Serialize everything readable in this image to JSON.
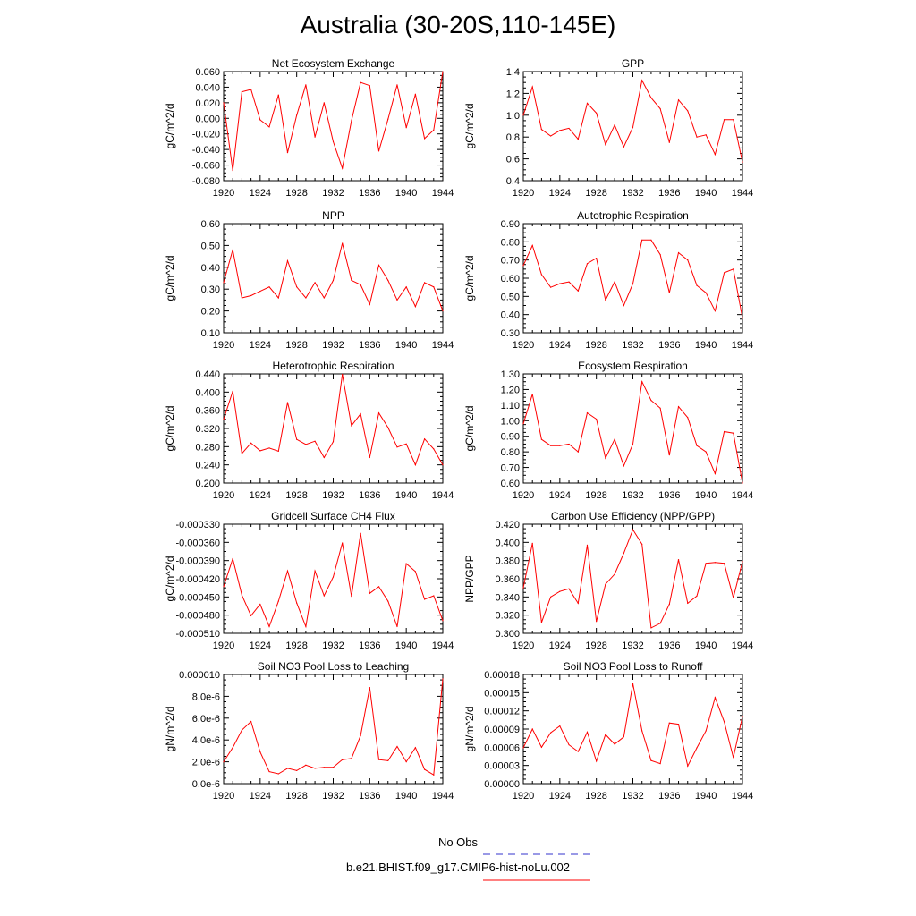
{
  "title": "Australia (30-20S,110-145E)",
  "colors": {
    "model": "#ff0000",
    "obs": "#3333cc"
  },
  "legend": {
    "obs_label": "No Obs",
    "model_label": "b.e21.BHIST.f09_g17.CMIP6-hist-noLu.002"
  },
  "chart_data": [
    {
      "type": "line",
      "title": "Net Ecosystem Exchange",
      "ylabel": "gC/m^2/d",
      "xlim": [
        1920,
        1944
      ],
      "ylim": [
        -0.08,
        0.06
      ],
      "grid": false,
      "xticks": [
        "1920",
        "1924",
        "1928",
        "1932",
        "1936",
        "1940",
        "1944"
      ],
      "yticks": [
        "-0.080",
        "-0.060",
        "-0.040",
        "-0.020",
        "0.000",
        "0.020",
        "0.040",
        "0.060"
      ],
      "ytick_values": [
        -0.08,
        -0.06,
        -0.04,
        -0.02,
        0,
        0.02,
        0.04,
        0.06
      ],
      "series": [
        {
          "x": [
            1920,
            1921,
            1922,
            1923,
            1924,
            1925,
            1926,
            1927,
            1928,
            1929,
            1930,
            1931,
            1932,
            1933,
            1934,
            1935,
            1936,
            1937,
            1938,
            1939,
            1940,
            1941,
            1942,
            1943,
            1944
          ],
          "values": [
            0.02,
            -0.067,
            0.034,
            0.037,
            -0.002,
            -0.011,
            0.03,
            -0.044,
            0.004,
            0.043,
            -0.024,
            0.02,
            -0.03,
            -0.064,
            -0.003,
            0.046,
            0.042,
            -0.042,
            -0.001,
            0.043,
            -0.012,
            0.031,
            -0.026,
            -0.015,
            0.06
          ]
        }
      ]
    },
    {
      "type": "line",
      "title": "GPP",
      "ylabel": "gC/m^2/d",
      "xlim": [
        1920,
        1944
      ],
      "ylim": [
        0.4,
        1.4
      ],
      "grid": false,
      "xticks": [
        "1920",
        "1924",
        "1928",
        "1932",
        "1936",
        "1940",
        "1944"
      ],
      "yticks": [
        "0.4",
        "0.6",
        "0.8",
        "1.0",
        "1.2",
        "1.4"
      ],
      "ytick_values": [
        0.4,
        0.6,
        0.8,
        1.0,
        1.2,
        1.4
      ],
      "series": [
        {
          "x": [
            1920,
            1921,
            1922,
            1923,
            1924,
            1925,
            1926,
            1927,
            1928,
            1929,
            1930,
            1931,
            1932,
            1933,
            1934,
            1935,
            1936,
            1937,
            1938,
            1939,
            1940,
            1941,
            1942,
            1943,
            1944
          ],
          "values": [
            1.0,
            1.26,
            0.87,
            0.81,
            0.86,
            0.88,
            0.78,
            1.11,
            1.02,
            0.73,
            0.91,
            0.71,
            0.89,
            1.32,
            1.16,
            1.06,
            0.75,
            1.14,
            1.04,
            0.8,
            0.82,
            0.64,
            0.96,
            0.96,
            0.57
          ]
        }
      ]
    },
    {
      "type": "line",
      "title": "NPP",
      "ylabel": "gC/m^2/d",
      "xlim": [
        1920,
        1944
      ],
      "ylim": [
        0.1,
        0.6
      ],
      "grid": false,
      "xticks": [
        "1920",
        "1924",
        "1928",
        "1932",
        "1936",
        "1940",
        "1944"
      ],
      "yticks": [
        "0.10",
        "0.20",
        "0.30",
        "0.40",
        "0.50",
        "0.60"
      ],
      "ytick_values": [
        0.1,
        0.2,
        0.3,
        0.4,
        0.5,
        0.6
      ],
      "series": [
        {
          "x": [
            1920,
            1921,
            1922,
            1923,
            1924,
            1925,
            1926,
            1927,
            1928,
            1929,
            1930,
            1931,
            1932,
            1933,
            1934,
            1935,
            1936,
            1937,
            1938,
            1939,
            1940,
            1941,
            1942,
            1943,
            1944
          ],
          "values": [
            0.33,
            0.48,
            0.26,
            0.27,
            0.29,
            0.31,
            0.26,
            0.43,
            0.31,
            0.26,
            0.33,
            0.26,
            0.34,
            0.51,
            0.34,
            0.32,
            0.23,
            0.41,
            0.34,
            0.25,
            0.31,
            0.22,
            0.33,
            0.31,
            0.2
          ]
        }
      ]
    },
    {
      "type": "line",
      "title": "Autotrophic Respiration",
      "ylabel": "gC/m^2/d",
      "xlim": [
        1920,
        1944
      ],
      "ylim": [
        0.3,
        0.9
      ],
      "grid": false,
      "xticks": [
        "1920",
        "1924",
        "1928",
        "1932",
        "1936",
        "1940",
        "1944"
      ],
      "yticks": [
        "0.30",
        "0.40",
        "0.50",
        "0.60",
        "0.70",
        "0.80",
        "0.90"
      ],
      "ytick_values": [
        0.3,
        0.4,
        0.5,
        0.6,
        0.7,
        0.8,
        0.9
      ],
      "series": [
        {
          "x": [
            1920,
            1921,
            1922,
            1923,
            1924,
            1925,
            1926,
            1927,
            1928,
            1929,
            1930,
            1931,
            1932,
            1933,
            1934,
            1935,
            1936,
            1937,
            1938,
            1939,
            1940,
            1941,
            1942,
            1943,
            1944
          ],
          "values": [
            0.67,
            0.78,
            0.62,
            0.55,
            0.57,
            0.58,
            0.53,
            0.68,
            0.71,
            0.48,
            0.58,
            0.45,
            0.57,
            0.81,
            0.81,
            0.73,
            0.52,
            0.74,
            0.7,
            0.56,
            0.52,
            0.42,
            0.63,
            0.65,
            0.38
          ]
        }
      ]
    },
    {
      "type": "line",
      "title": "Heterotrophic Respiration",
      "ylabel": "gC/m^2/d",
      "xlim": [
        1920,
        1944
      ],
      "ylim": [
        0.2,
        0.44
      ],
      "grid": false,
      "xticks": [
        "1920",
        "1924",
        "1928",
        "1932",
        "1936",
        "1940",
        "1944"
      ],
      "yticks": [
        "0.200",
        "0.240",
        "0.280",
        "0.320",
        "0.360",
        "0.400",
        "0.440"
      ],
      "ytick_values": [
        0.2,
        0.24,
        0.28,
        0.32,
        0.36,
        0.4,
        0.44
      ],
      "series": [
        {
          "x": [
            1920,
            1921,
            1922,
            1923,
            1924,
            1925,
            1926,
            1927,
            1928,
            1929,
            1930,
            1931,
            1932,
            1933,
            1934,
            1935,
            1936,
            1937,
            1938,
            1939,
            1940,
            1941,
            1942,
            1943,
            1944
          ],
          "values": [
            0.34,
            0.402,
            0.265,
            0.288,
            0.271,
            0.277,
            0.27,
            0.377,
            0.296,
            0.285,
            0.292,
            0.256,
            0.291,
            0.439,
            0.326,
            0.352,
            0.256,
            0.354,
            0.322,
            0.279,
            0.286,
            0.24,
            0.297,
            0.275,
            0.24
          ]
        }
      ]
    },
    {
      "type": "line",
      "title": "Ecosystem Respiration",
      "ylabel": "gC/m^2/d",
      "xlim": [
        1920,
        1944
      ],
      "ylim": [
        0.6,
        1.3
      ],
      "grid": false,
      "xticks": [
        "1920",
        "1924",
        "1928",
        "1932",
        "1936",
        "1940",
        "1944"
      ],
      "yticks": [
        "0.60",
        "0.70",
        "0.80",
        "0.90",
        "1.00",
        "1.10",
        "1.20",
        "1.30"
      ],
      "ytick_values": [
        0.6,
        0.7,
        0.8,
        0.9,
        1.0,
        1.1,
        1.2,
        1.3
      ],
      "series": [
        {
          "x": [
            1920,
            1921,
            1922,
            1923,
            1924,
            1925,
            1926,
            1927,
            1928,
            1929,
            1930,
            1931,
            1932,
            1933,
            1934,
            1935,
            1936,
            1937,
            1938,
            1939,
            1940,
            1941,
            1942,
            1943,
            1944
          ],
          "values": [
            0.98,
            1.17,
            0.88,
            0.84,
            0.84,
            0.85,
            0.8,
            1.05,
            1.01,
            0.76,
            0.88,
            0.71,
            0.85,
            1.25,
            1.13,
            1.08,
            0.78,
            1.09,
            1.02,
            0.84,
            0.8,
            0.66,
            0.93,
            0.92,
            0.6
          ]
        }
      ]
    },
    {
      "type": "line",
      "title": "Gridcell Surface CH4 Flux",
      "ylabel": "gC/m^2/d",
      "xlim": [
        1920,
        1944
      ],
      "ylim": [
        -0.00051,
        -0.00033
      ],
      "grid": false,
      "xticks": [
        "1920",
        "1924",
        "1928",
        "1932",
        "1936",
        "1940",
        "1944"
      ],
      "yticks": [
        "-0.000510",
        "-0.000480",
        "-0.000450",
        "-0.000420",
        "-0.000390",
        "-0.000360",
        "-0.000330"
      ],
      "ytick_values": [
        -0.00051,
        -0.00048,
        -0.00045,
        -0.00042,
        -0.00039,
        -0.00036,
        -0.00033
      ],
      "series": [
        {
          "x": [
            1920,
            1921,
            1922,
            1923,
            1924,
            1925,
            1926,
            1927,
            1928,
            1929,
            1930,
            1931,
            1932,
            1933,
            1934,
            1935,
            1936,
            1937,
            1938,
            1939,
            1940,
            1941,
            1942,
            1943,
            1944
          ],
          "values": [
            -0.000433,
            -0.000387,
            -0.000447,
            -0.000481,
            -0.000462,
            -0.000499,
            -0.000457,
            -0.000407,
            -0.00046,
            -0.000499,
            -0.000407,
            -0.000448,
            -0.000417,
            -0.000361,
            -0.000449,
            -0.000345,
            -0.000444,
            -0.000433,
            -0.000457,
            -0.000499,
            -0.000395,
            -0.000408,
            -0.000454,
            -0.000448,
            -0.000489
          ]
        }
      ]
    },
    {
      "type": "line",
      "title": "Carbon Use Efficiency (NPP/GPP)",
      "ylabel": "NPP/GPP",
      "xlim": [
        1920,
        1944
      ],
      "ylim": [
        0.3,
        0.42
      ],
      "grid": false,
      "xticks": [
        "1920",
        "1924",
        "1928",
        "1932",
        "1936",
        "1940",
        "1944"
      ],
      "yticks": [
        "0.300",
        "0.320",
        "0.340",
        "0.360",
        "0.380",
        "0.400",
        "0.420"
      ],
      "ytick_values": [
        0.3,
        0.32,
        0.34,
        0.36,
        0.38,
        0.4,
        0.42
      ],
      "series": [
        {
          "x": [
            1920,
            1921,
            1922,
            1923,
            1924,
            1925,
            1926,
            1927,
            1928,
            1929,
            1930,
            1931,
            1932,
            1933,
            1934,
            1935,
            1936,
            1937,
            1938,
            1939,
            1940,
            1941,
            1942,
            1943,
            1944
          ],
          "values": [
            0.35,
            0.399,
            0.312,
            0.34,
            0.346,
            0.349,
            0.333,
            0.397,
            0.313,
            0.354,
            0.365,
            0.388,
            0.414,
            0.398,
            0.306,
            0.311,
            0.332,
            0.381,
            0.333,
            0.341,
            0.377,
            0.378,
            0.377,
            0.339,
            0.379
          ]
        }
      ]
    },
    {
      "type": "line",
      "title": "Soil NO3 Pool Loss to Leaching",
      "ylabel": "gN/m^2/d",
      "xlim": [
        1920,
        1944
      ],
      "ylim": [
        0,
        1e-05
      ],
      "grid": false,
      "xticks": [
        "1920",
        "1924",
        "1928",
        "1932",
        "1936",
        "1940",
        "1944"
      ],
      "yticks": [
        "0.0e-6",
        "2.0e-6",
        "4.0e-6",
        "6.0e-6",
        "8.0e-6",
        "0.000010"
      ],
      "ytick_values": [
        0,
        2e-06,
        4e-06,
        6e-06,
        8e-06,
        1e-05
      ],
      "series": [
        {
          "x": [
            1920,
            1921,
            1922,
            1923,
            1924,
            1925,
            1926,
            1927,
            1928,
            1929,
            1930,
            1931,
            1932,
            1933,
            1934,
            1935,
            1936,
            1937,
            1938,
            1939,
            1940,
            1941,
            1942,
            1943,
            1944
          ],
          "values": [
            2e-06,
            3.3e-06,
            4.9e-06,
            5.7e-06,
            2.9e-06,
            1.1e-06,
            9e-07,
            1.4e-06,
            1.2e-06,
            1.7e-06,
            1.4e-06,
            1.5e-06,
            1.5e-06,
            2.2e-06,
            2.3e-06,
            4.4e-06,
            8.8e-06,
            2.2e-06,
            2.1e-06,
            3.4e-06,
            2e-06,
            3.3e-06,
            1.3e-06,
            8e-07,
            9.6e-06
          ]
        }
      ]
    },
    {
      "type": "line",
      "title": "Soil NO3 Pool Loss to Runoff",
      "ylabel": "gN/m^2/d",
      "xlim": [
        1920,
        1944
      ],
      "ylim": [
        0,
        0.00018
      ],
      "grid": false,
      "xticks": [
        "1920",
        "1924",
        "1928",
        "1932",
        "1936",
        "1940",
        "1944"
      ],
      "yticks": [
        "0.00000",
        "0.00003",
        "0.00006",
        "0.00009",
        "0.00012",
        "0.00015",
        "0.00018"
      ],
      "ytick_values": [
        0,
        3e-05,
        6e-05,
        9e-05,
        0.00012,
        0.00015,
        0.00018
      ],
      "series": [
        {
          "x": [
            1920,
            1921,
            1922,
            1923,
            1924,
            1925,
            1926,
            1927,
            1928,
            1929,
            1930,
            1931,
            1932,
            1933,
            1934,
            1935,
            1936,
            1937,
            1938,
            1939,
            1940,
            1941,
            1942,
            1943,
            1944
          ],
          "values": [
            5.9e-05,
            9e-05,
            6e-05,
            8.4e-05,
            9.5e-05,
            6.4e-05,
            5.3e-05,
            8.5e-05,
            3.7e-05,
            8.1e-05,
            6.5e-05,
            7.7e-05,
            0.000165,
            8.7e-05,
            3.8e-05,
            3.3e-05,
            0.0001,
            9.8e-05,
            2.9e-05,
            5.9e-05,
            8.7e-05,
            0.000142,
            0.000102,
            4.3e-05,
            0.000111
          ]
        }
      ]
    }
  ]
}
